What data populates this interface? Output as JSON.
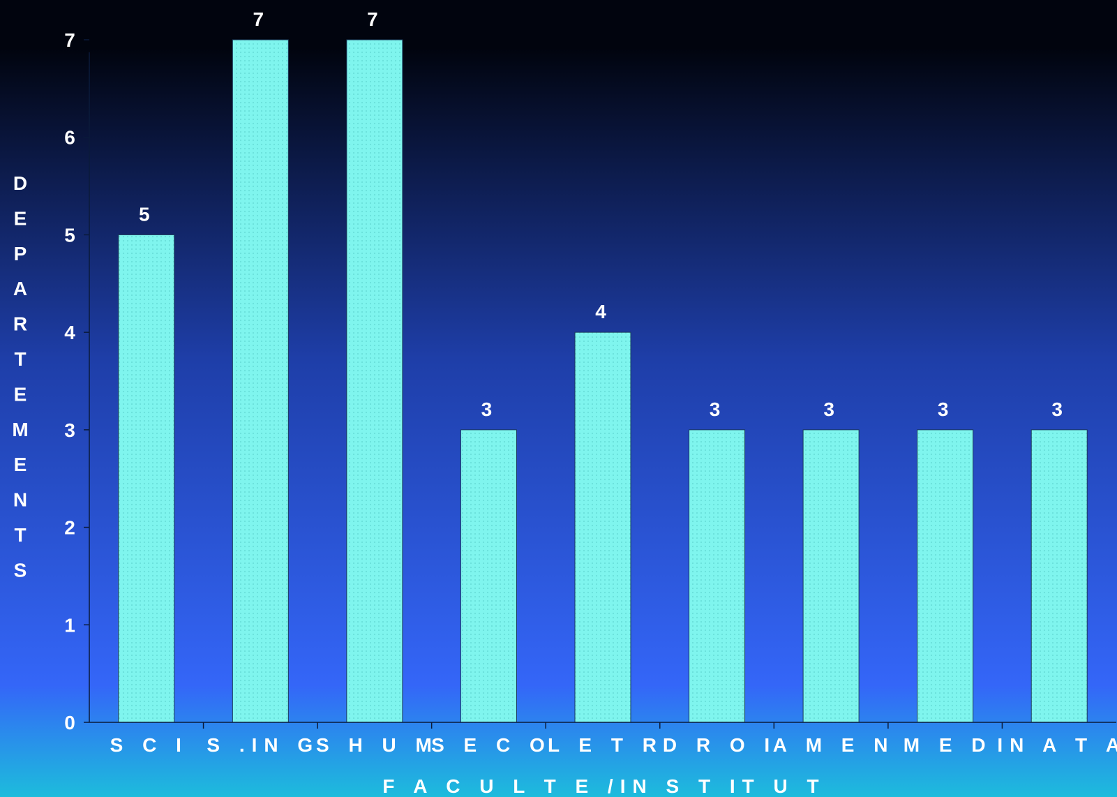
{
  "chart_data": {
    "type": "bar",
    "categories": [
      "S C I",
      "S .IN G",
      "S H U M",
      "S E C O",
      "L E T R",
      "D R O I",
      "A M E N",
      "M E D",
      "IN A T A"
    ],
    "values": [
      5,
      7,
      7,
      3,
      4,
      3,
      3,
      3,
      3
    ],
    "data_labels": [
      "5",
      "7",
      "7",
      "3",
      "4",
      "3",
      "3",
      "3",
      "3"
    ],
    "xlabel": "F A C U L T E /IN S T IT U T",
    "ylabel": "DEPARTEMENTS",
    "ylim": [
      0,
      7
    ],
    "yticks": [
      "0",
      "1",
      "2",
      "3",
      "4",
      "5",
      "6",
      "7"
    ],
    "grid": false,
    "legend": "none",
    "colors": {
      "bar_fill": "#7ff5ee",
      "bar_stroke": "#1a3a5a",
      "axis": "#0a1a3a",
      "text": "#ffffff",
      "bg_top": "#01040e",
      "bg_mid": "#1e3ea8",
      "bg_low": "#3466f8",
      "bg_bottom": "#1dbcdc"
    }
  }
}
